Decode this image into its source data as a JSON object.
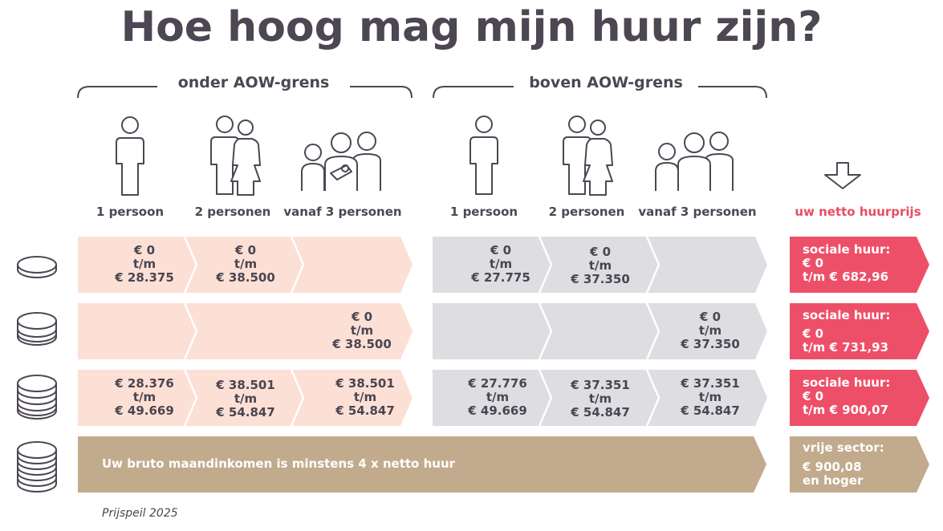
{
  "title": "Hoe hoog mag mijn huur zijn?",
  "groups": {
    "onder": "onder AOW-grens",
    "boven": "boven AOW-grens"
  },
  "household_labels": [
    "1 persoon",
    "2 personen",
    "vanaf 3 personen",
    "1 persoon",
    "2 personen",
    "vanaf 3 personen"
  ],
  "netto_label": "uw netto huurprijs",
  "rows": [
    {
      "cells": [
        "€ 0\nt/m\n€ 28.375",
        "€ 0\nt/m\n€ 38.500",
        "",
        "€ 0\nt/m\n€ 27.775",
        "€ 0\nt/m\n€ 37.350",
        ""
      ],
      "result_title": "sociale huur:",
      "result_value": "€ 0\nt/m € 682,96"
    },
    {
      "cells": [
        "",
        "",
        "€ 0\nt/m\n€ 38.500",
        "",
        "",
        "€ 0\nt/m\n€ 37.350"
      ],
      "result_title": "sociale huur:",
      "result_value": "€ 0\nt/m € 731,93"
    },
    {
      "cells": [
        "€ 28.376\nt/m\n€ 49.669",
        "€ 38.501\nt/m\n€ 54.847",
        "€ 38.501\nt/m\n€ 54.847",
        "€  27.776\nt/m\n€ 49.669",
        "€ 37.351\nt/m\n€ 54.847",
        "€ 37.351\nt/m\n€ 54.847"
      ],
      "result_title": "sociale huur:",
      "result_value": "€ 0\nt/m € 900,07"
    }
  ],
  "bruto_row": {
    "text": "Uw bruto maandinkomen is minstens 4 x netto huur",
    "result_title": "vrije sector:",
    "result_value": "€ 900,08\nen hoger"
  },
  "footnote": "Prijspeil 2025",
  "colors": {
    "peach": "#fce0d5",
    "grey": "#dedde1",
    "red": "#ee4f68",
    "tan": "#c2aa8d",
    "text": "#4d4653"
  }
}
